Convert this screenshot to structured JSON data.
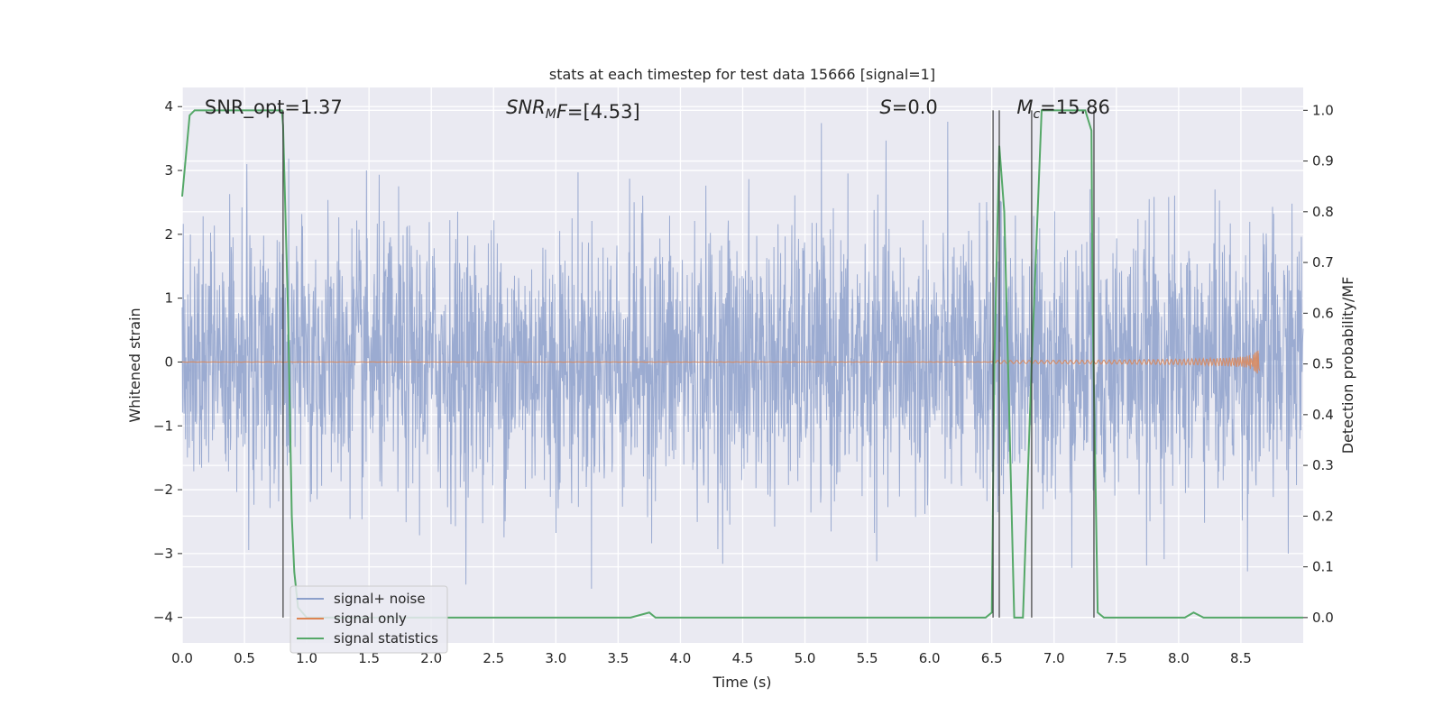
{
  "chart_data": {
    "type": "line",
    "title": "stats at each timestep for test data 15666 [signal=1]",
    "xlabel": "Time (s)",
    "ylabel_left": "Whitened strain",
    "ylabel_right": "Detection probability/MF",
    "xlim": [
      0.0,
      9.0
    ],
    "ylim_left": [
      -4.4,
      4.3
    ],
    "ylim_right": [
      -0.05,
      1.045
    ],
    "x_ticks": [
      0.0,
      0.5,
      1.0,
      1.5,
      2.0,
      2.5,
      3.0,
      3.5,
      4.0,
      4.5,
      5.0,
      5.5,
      6.0,
      6.5,
      7.0,
      7.5,
      8.0,
      8.5
    ],
    "x_tick_labels": [
      "0.0",
      "0.5",
      "1.0",
      "1.5",
      "2.0",
      "2.5",
      "3.0",
      "3.5",
      "4.0",
      "4.5",
      "5.0",
      "5.5",
      "6.0",
      "6.5",
      "7.0",
      "7.5",
      "8.0",
      "8.5"
    ],
    "y_left_ticks": [
      -4,
      -3,
      -2,
      -1,
      0,
      1,
      2,
      3,
      4
    ],
    "y_left_tick_labels": [
      "−4",
      "−3",
      "−2",
      "−1",
      "0",
      "1",
      "2",
      "3",
      "4"
    ],
    "y_right_ticks": [
      0.0,
      0.1,
      0.2,
      0.3,
      0.4,
      0.5,
      0.6,
      0.7,
      0.8,
      0.9,
      1.0
    ],
    "y_right_tick_labels": [
      "0.0",
      "0.1",
      "0.2",
      "0.3",
      "0.4",
      "0.5",
      "0.6",
      "0.7",
      "0.8",
      "0.9",
      "1.0"
    ],
    "grid": true,
    "annotations": [
      {
        "id": "snr-opt",
        "text": "SNR_opt=1.37",
        "x": 0.18,
        "y": 4.0
      },
      {
        "id": "snr-mf",
        "text": "SNR_MF=[4.53]",
        "x": 2.6,
        "y": 4.0
      },
      {
        "id": "s-stat",
        "text": "S=0.0",
        "x": 5.6,
        "y": 4.0
      },
      {
        "id": "mc",
        "text": "M_c=15.86",
        "x": 6.7,
        "y": 4.0
      }
    ],
    "legend": {
      "placement": "lower-left",
      "entries": [
        {
          "label": "signal+ noise",
          "color": "#8da0cb"
        },
        {
          "label": "signal only",
          "color": "#dd8452"
        },
        {
          "label": "signal statistics",
          "color": "#55a868"
        }
      ]
    },
    "series": [
      {
        "name": "signal+ noise",
        "axis": "left",
        "color": "#8da0cb",
        "note": "dense whitened noise time series, approx. ±2 typical, peaks to ±4"
      },
      {
        "name": "signal only",
        "axis": "left",
        "color": "#dd8452",
        "chirp_end_time": 8.65,
        "chirp_peak_amplitude": 0.25
      },
      {
        "name": "signal statistics",
        "axis": "right",
        "color": "#55a868",
        "x": [
          0.0,
          0.06,
          0.1,
          0.2,
          0.5,
          0.8,
          0.81,
          0.85,
          0.88,
          0.9,
          0.93,
          1.0,
          3.6,
          3.75,
          3.8,
          6.45,
          6.5,
          6.52,
          6.56,
          6.6,
          6.68,
          6.75,
          6.82,
          6.9,
          7.25,
          7.3,
          7.31,
          7.35,
          7.4,
          8.05,
          8.12,
          8.2,
          9.0
        ],
        "y": [
          0.83,
          0.99,
          1.0,
          1.0,
          1.0,
          1.0,
          0.97,
          0.6,
          0.2,
          0.09,
          0.02,
          0.0,
          0.0,
          0.01,
          0.0,
          0.0,
          0.01,
          0.5,
          0.93,
          0.8,
          0.0,
          0.0,
          0.5,
          1.0,
          1.0,
          0.96,
          0.6,
          0.01,
          0.0,
          0.0,
          0.01,
          0.0,
          0.0
        ]
      }
    ],
    "vertical_markers": [
      0.81,
      6.51,
      6.56,
      6.82,
      7.32
    ]
  }
}
